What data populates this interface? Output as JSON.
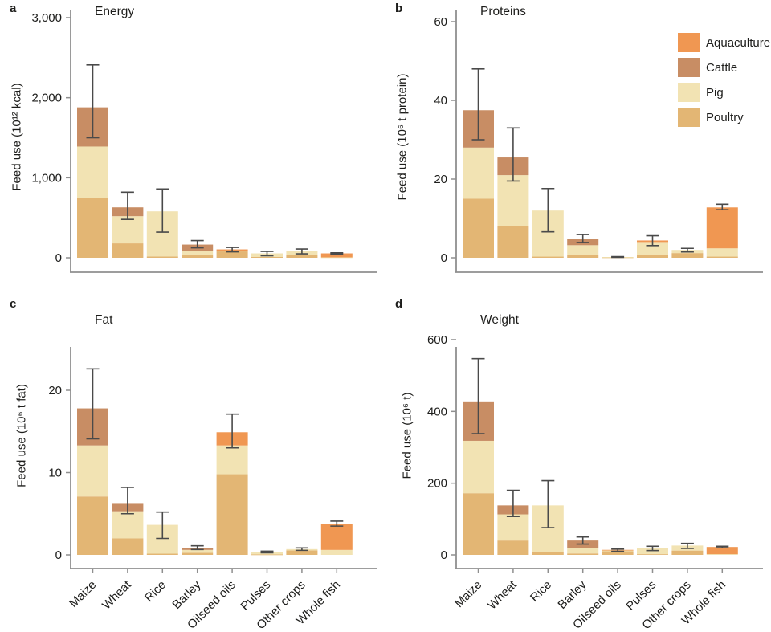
{
  "colors": {
    "aquaculture": "#F09752",
    "cattle": "#C88D64",
    "pig": "#F2E3B3",
    "poultry": "#E3B674",
    "error_bar": "#4A4A4A",
    "axis": "#8F8F8F",
    "text": "#1D1D1B",
    "background": "#FFFFFF"
  },
  "legend": {
    "position": "top-right-of-panel-b",
    "items": [
      {
        "label": "Aquaculture",
        "key": "aquaculture"
      },
      {
        "label": "Cattle",
        "key": "cattle"
      },
      {
        "label": "Pig",
        "key": "pig"
      },
      {
        "label": "Poultry",
        "key": "poultry"
      }
    ]
  },
  "categories": [
    "Maize",
    "Wheat",
    "Rice",
    "Barley",
    "Oilseed oils",
    "Pulses",
    "Other crops",
    "Whole fish"
  ],
  "chart_data": [
    {
      "panel_letter": "a",
      "type": "bar",
      "stacked": true,
      "title": "Energy",
      "ylabel": "Feed use (10¹² kcal)",
      "ylim": [
        0,
        3000
      ],
      "grid": false,
      "yticks": [
        {
          "v": 0,
          "label": "0"
        },
        {
          "v": 1000,
          "label": "1,000"
        },
        {
          "v": 2000,
          "label": "2,000"
        },
        {
          "v": 3000,
          "label": "3,000"
        }
      ],
      "series": [
        {
          "name": "Poultry",
          "key": "poultry",
          "values": [
            750,
            180,
            15,
            30,
            80,
            10,
            40,
            0
          ]
        },
        {
          "name": "Pig",
          "key": "pig",
          "values": [
            640,
            340,
            565,
            55,
            10,
            45,
            45,
            5
          ]
        },
        {
          "name": "Cattle",
          "key": "cattle",
          "values": [
            490,
            110,
            0,
            80,
            0,
            0,
            0,
            0
          ]
        },
        {
          "name": "Aquaculture",
          "key": "aquaculture",
          "values": [
            0,
            0,
            0,
            0,
            15,
            0,
            0,
            50
          ]
        }
      ],
      "totals": [
        1880,
        630,
        580,
        165,
        105,
        55,
        85,
        55
      ],
      "error_lo": [
        1500,
        480,
        320,
        125,
        75,
        25,
        50,
        48
      ],
      "error_hi": [
        2410,
        820,
        860,
        215,
        130,
        80,
        110,
        62
      ],
      "row": 0,
      "col": 0,
      "show_x_labels": false,
      "show_legend": false,
      "top_tick_y": 22
    },
    {
      "panel_letter": "b",
      "type": "bar",
      "stacked": true,
      "title": "Proteins",
      "ylabel": "Feed use (10⁶ t protein)",
      "ylim": [
        0,
        60
      ],
      "grid": false,
      "yticks": [
        {
          "v": 0,
          "label": "0"
        },
        {
          "v": 20,
          "label": "20"
        },
        {
          "v": 40,
          "label": "40"
        },
        {
          "v": 60,
          "label": "60"
        }
      ],
      "series": [
        {
          "name": "Poultry",
          "key": "poultry",
          "values": [
            15,
            8,
            0.3,
            0.8,
            0.1,
            0.8,
            1.2,
            0.3
          ]
        },
        {
          "name": "Pig",
          "key": "pig",
          "values": [
            13,
            13,
            11.7,
            2.4,
            0.1,
            3.2,
            0.8,
            2.1
          ]
        },
        {
          "name": "Cattle",
          "key": "cattle",
          "values": [
            9.5,
            4.5,
            0,
            1.6,
            0,
            0,
            0,
            0
          ]
        },
        {
          "name": "Aquaculture",
          "key": "aquaculture",
          "values": [
            0,
            0,
            0,
            0,
            0,
            0.4,
            0,
            10.4
          ]
        }
      ],
      "totals": [
        37.5,
        25.5,
        12,
        4.8,
        0.2,
        4.4,
        2.0,
        12.8
      ],
      "error_lo": [
        30,
        19.5,
        6.6,
        3.9,
        0.1,
        3.1,
        1.5,
        12.2
      ],
      "error_hi": [
        48,
        33,
        17.6,
        5.9,
        0.3,
        5.6,
        2.4,
        13.6
      ],
      "row": 0,
      "col": 1,
      "show_x_labels": false,
      "show_legend": true,
      "top_tick_y": 27
    },
    {
      "panel_letter": "c",
      "type": "bar",
      "stacked": true,
      "title": "Fat",
      "ylabel": "Feed use (10⁶ t fat)",
      "ylim": [
        0,
        20
      ],
      "grid": false,
      "yticks": [
        {
          "v": 0,
          "label": "0"
        },
        {
          "v": 10,
          "label": "10"
        },
        {
          "v": 20,
          "label": "20"
        }
      ],
      "series": [
        {
          "name": "Poultry",
          "key": "poultry",
          "values": [
            7.1,
            2.0,
            0.15,
            0.25,
            9.8,
            0.05,
            0.55,
            0
          ]
        },
        {
          "name": "Pig",
          "key": "pig",
          "values": [
            6.2,
            3.3,
            3.5,
            0.35,
            3.5,
            0.3,
            0.15,
            0.6
          ]
        },
        {
          "name": "Cattle",
          "key": "cattle",
          "values": [
            4.5,
            1.0,
            0,
            0.25,
            0,
            0,
            0,
            0
          ]
        },
        {
          "name": "Aquaculture",
          "key": "aquaculture",
          "values": [
            0,
            0,
            0,
            0,
            1.6,
            0,
            0,
            3.2
          ]
        }
      ],
      "totals": [
        17.8,
        6.3,
        3.65,
        0.85,
        14.9,
        0.35,
        0.7,
        3.8
      ],
      "error_lo": [
        14.1,
        5.0,
        2.0,
        0.65,
        13.0,
        0.25,
        0.55,
        3.5
      ],
      "error_hi": [
        22.6,
        8.2,
        5.2,
        1.1,
        17.1,
        0.45,
        0.85,
        4.1
      ],
      "row": 1,
      "col": 0,
      "show_x_labels": true,
      "show_legend": false,
      "top_tick_y": 126
    },
    {
      "panel_letter": "d",
      "type": "bar",
      "stacked": true,
      "title": "Weight",
      "ylabel": "Feed use (10⁶ t)",
      "ylim": [
        0,
        600
      ],
      "grid": false,
      "yticks": [
        {
          "v": 0,
          "label": "0"
        },
        {
          "v": 200,
          "label": "200"
        },
        {
          "v": 400,
          "label": "400"
        },
        {
          "v": 600,
          "label": "600"
        }
      ],
      "series": [
        {
          "name": "Poultry",
          "key": "poultry",
          "values": [
            172,
            40,
            7,
            4,
            10,
            2,
            12,
            0
          ]
        },
        {
          "name": "Pig",
          "key": "pig",
          "values": [
            146,
            73,
            131,
            16,
            3,
            16,
            14,
            2
          ]
        },
        {
          "name": "Cattle",
          "key": "cattle",
          "values": [
            110,
            25,
            0,
            20,
            0,
            0,
            0,
            0
          ]
        },
        {
          "name": "Aquaculture",
          "key": "aquaculture",
          "values": [
            0,
            0,
            0,
            0,
            1,
            0,
            0,
            20
          ]
        }
      ],
      "totals": [
        428,
        138,
        138,
        40,
        14,
        18,
        26,
        22
      ],
      "error_lo": [
        338,
        107,
        76,
        30,
        10,
        12,
        18,
        20
      ],
      "error_hi": [
        547,
        180,
        207,
        50,
        16,
        24,
        32,
        24
      ],
      "row": 1,
      "col": 1,
      "show_x_labels": true,
      "show_legend": false,
      "top_tick_y": 63
    }
  ]
}
